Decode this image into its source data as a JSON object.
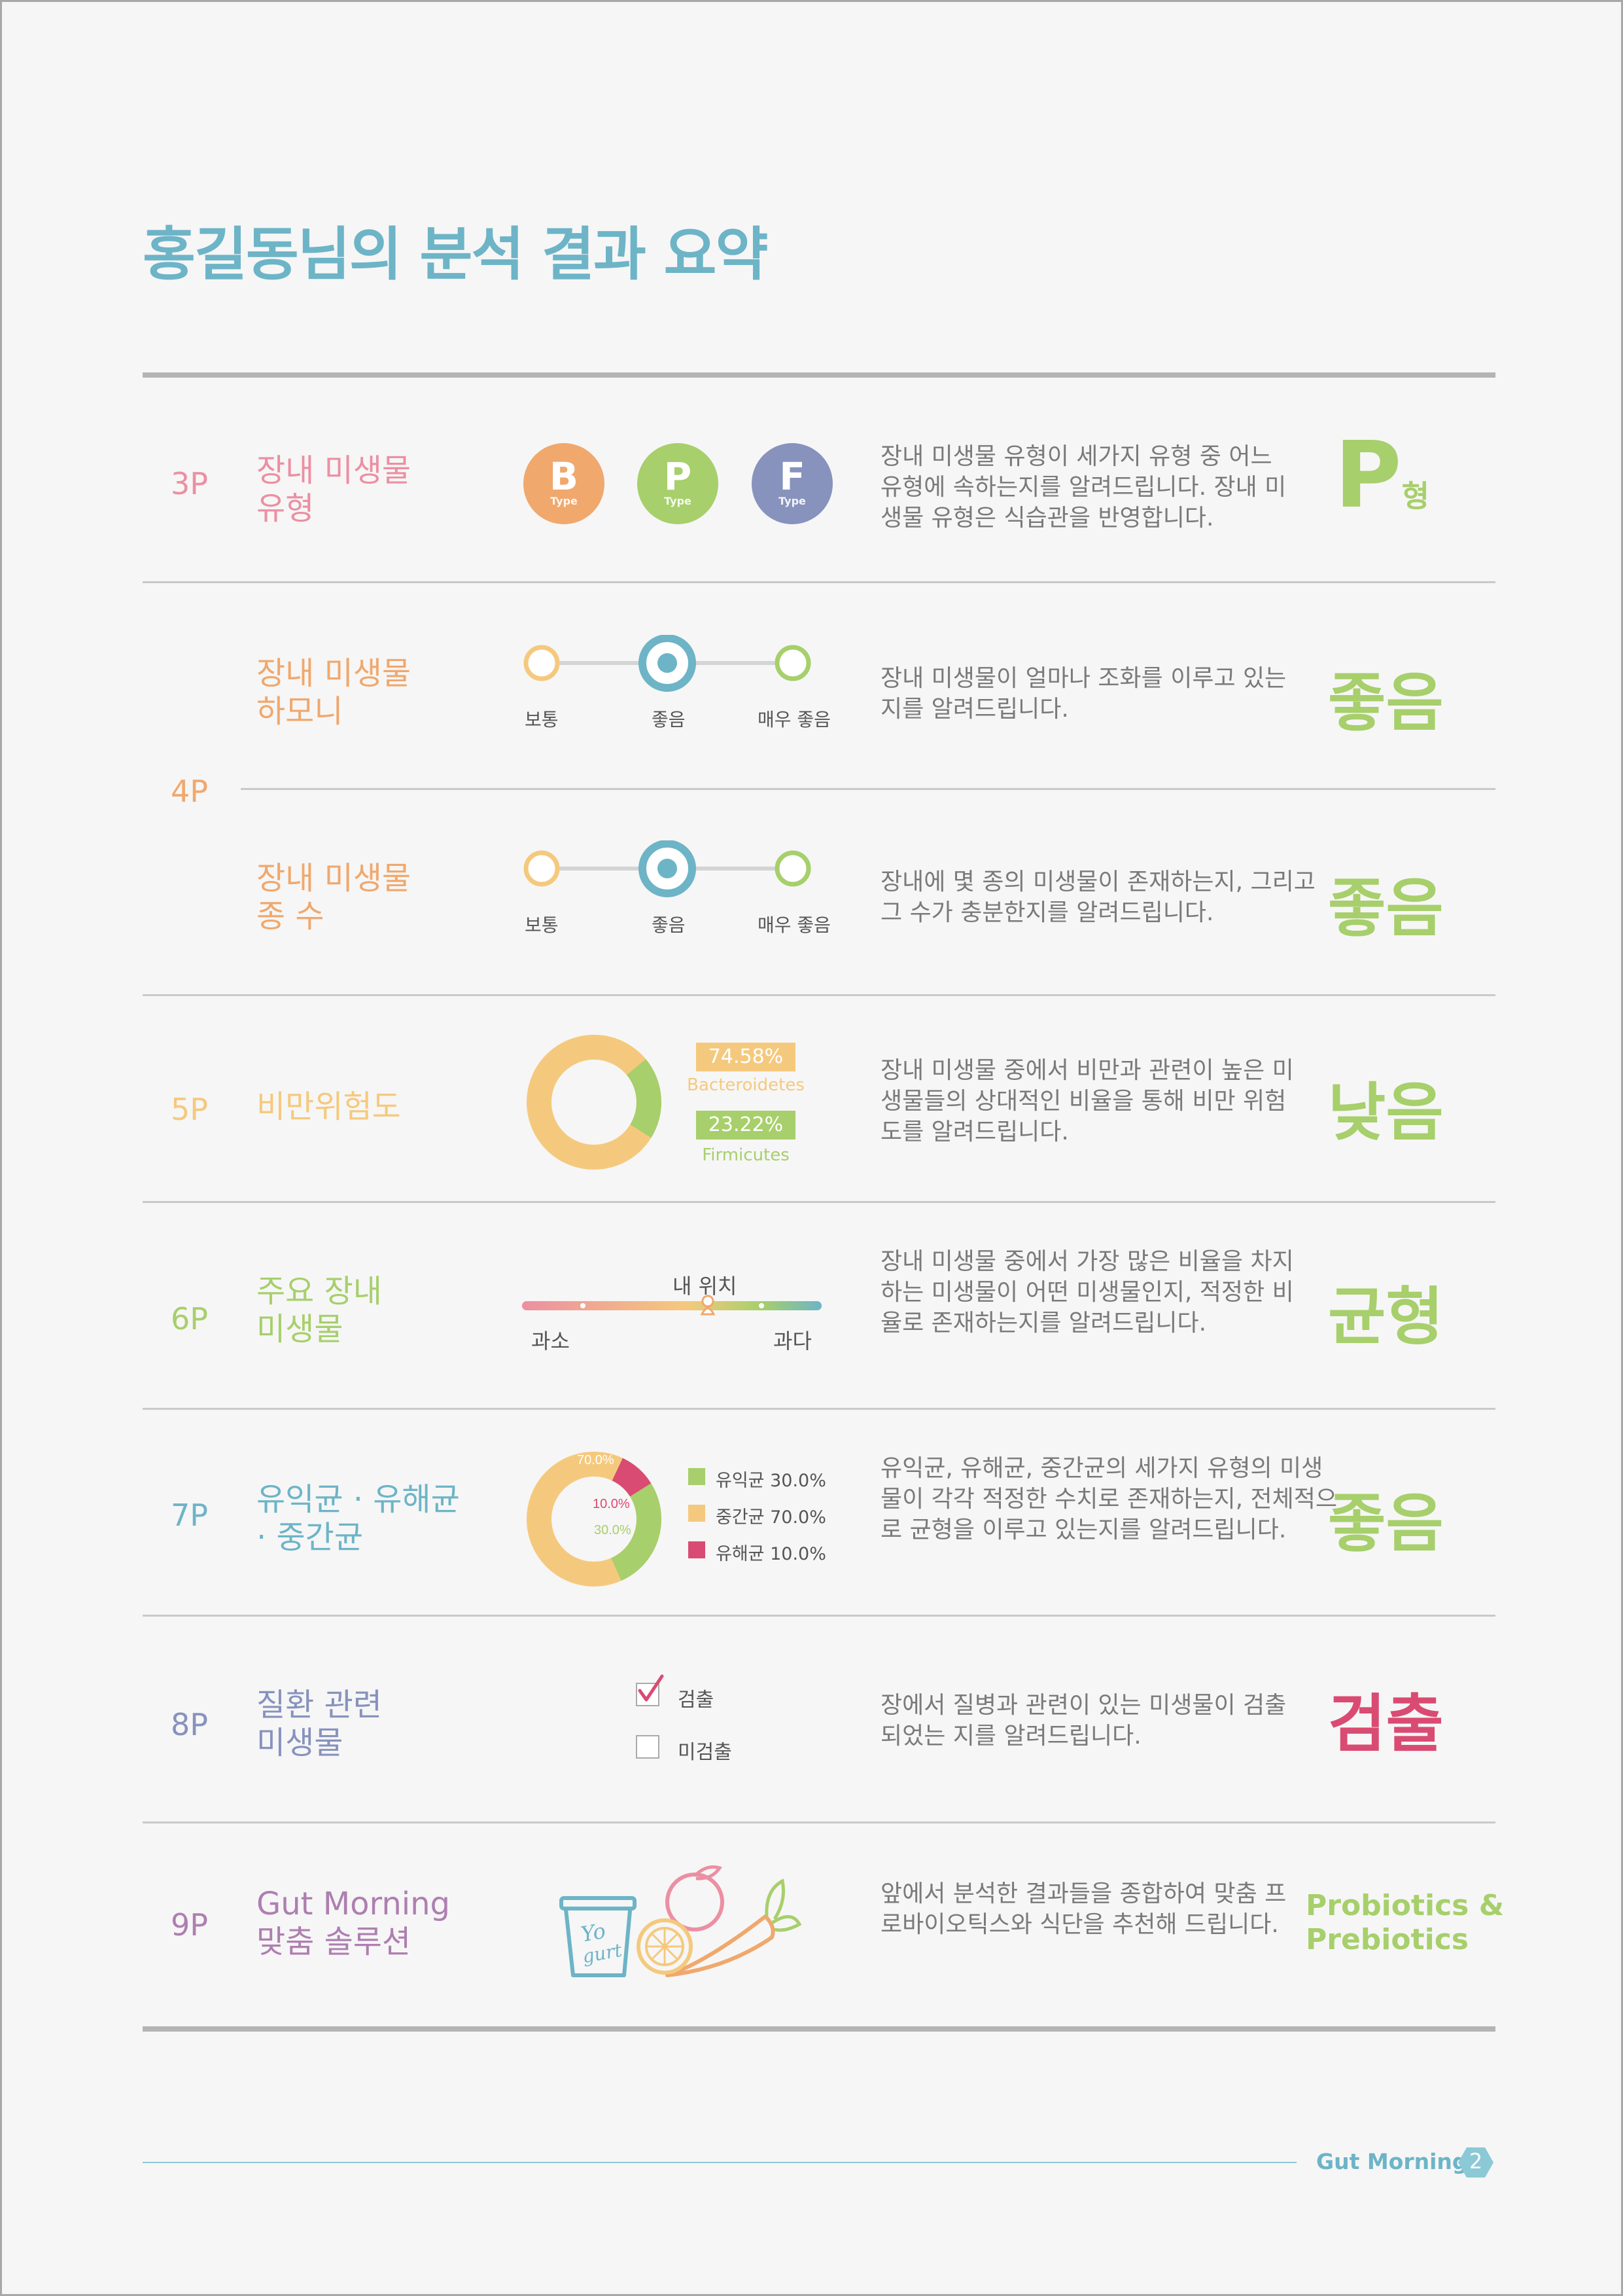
{
  "page_title": "홍길동님의 분석 결과 요약",
  "colors": {
    "pink": "#ec8fa2",
    "orange": "#f0a86d",
    "yellow": "#f5c97d",
    "green": "#a7cf6b",
    "teal": "#6db4c7",
    "navy": "#8792bd",
    "purple": "#ae7fb0",
    "red": "#d94b72"
  },
  "sections": {
    "type": {
      "page": "3P",
      "title_line1": "장내 미생물",
      "title_line2": "유형",
      "circles": [
        {
          "letter": "B",
          "sub": "Type"
        },
        {
          "letter": "P",
          "sub": "Type"
        },
        {
          "letter": "F",
          "sub": "Type"
        }
      ],
      "desc": "장내 미생물 유형이 세가지 유형 중 어느 유형에 속하는지를 알려드립니다. 장내 미생물 유형은 식습관을 반영합니다.",
      "result_main": "P",
      "result_suffix": "형"
    },
    "harmony": {
      "page": "4P",
      "title_line1": "장내 미생물",
      "title_line2": "하모니",
      "scale": [
        "보통",
        "좋음",
        "매우 좋음"
      ],
      "selected_index": 1,
      "desc": "장내 미생물이 얼마나 조화를 이루고 있는지를 알려드립니다.",
      "result": "좋음"
    },
    "species": {
      "title_line1": "장내 미생물",
      "title_line2": "종 수",
      "scale": [
        "보통",
        "좋음",
        "매우 좋음"
      ],
      "selected_index": 1,
      "desc": "장내에 몇 종의 미생물이 존재하는지, 그리고 그 수가 충분한지를 알려드립니다.",
      "result": "좋음"
    },
    "obesity": {
      "page": "5P",
      "title": "비만위험도",
      "bacteroidetes_value": "74.58%",
      "bacteroidetes_label": "Bacteroidetes",
      "firmicutes_value": "23.22%",
      "firmicutes_label": "Firmicutes",
      "desc": "장내 미생물 중에서 비만과 관련이 높은 미생물들의 상대적인 비율을 통해 비만 위험도를 알려드립니다.",
      "result": "낮음"
    },
    "major": {
      "page": "6P",
      "title_line1": "주요 장내",
      "title_line2": "미생물",
      "marker_label": "내 위치",
      "marker_position": 0.62,
      "low_label": "과소",
      "high_label": "과다",
      "desc": "장내 미생물 중에서 가장 많은 비율을 차지하는 미생물이 어떤 미생물인지, 적정한 비율로 존재하는지를 알려드립니다.",
      "result": "균형"
    },
    "bacteria": {
      "page": "7P",
      "title_line1": "유익균 · 유해균",
      "title_line2": "· 중간균",
      "donut_labels": [
        "70.0%",
        "10.0%",
        "30.0%"
      ],
      "legend": [
        {
          "label": "유익균 30.0%",
          "value": 30.0
        },
        {
          "label": "중간균 70.0%",
          "value": 70.0
        },
        {
          "label": "유해균 10.0%",
          "value": 10.0
        }
      ],
      "desc": "유익균, 유해균, 중간균의 세가지 유형의 미생물이 각각 적정한 수치로 존재하는지, 전체적으로 균형을 이루고 있는지를 알려드립니다.",
      "result": "좋음"
    },
    "disease": {
      "page": "8P",
      "title_line1": "질환 관련",
      "title_line2": "미생물",
      "option_detected": "검출",
      "option_not_detected": "미검출",
      "checked": "검출",
      "desc": "장에서 질병과 관련이 있는 미생물이 검출되었는 지를 알려드립니다.",
      "result": "검출"
    },
    "solution": {
      "page": "9P",
      "title_line1": "Gut Morning",
      "title_line2": "맞춤 솔루션",
      "yogurt_text_1": "Yo",
      "yogurt_text_2": "gurt",
      "desc": "앞에서 분석한 결과들을 종합하여 맞춤 프로바이오틱스와 식단을 추천해 드립니다.",
      "result_line1": "Probiotics &",
      "result_line2": "Prebiotics"
    }
  },
  "footer": {
    "brand": "Gut Morning",
    "page_number": "2"
  }
}
